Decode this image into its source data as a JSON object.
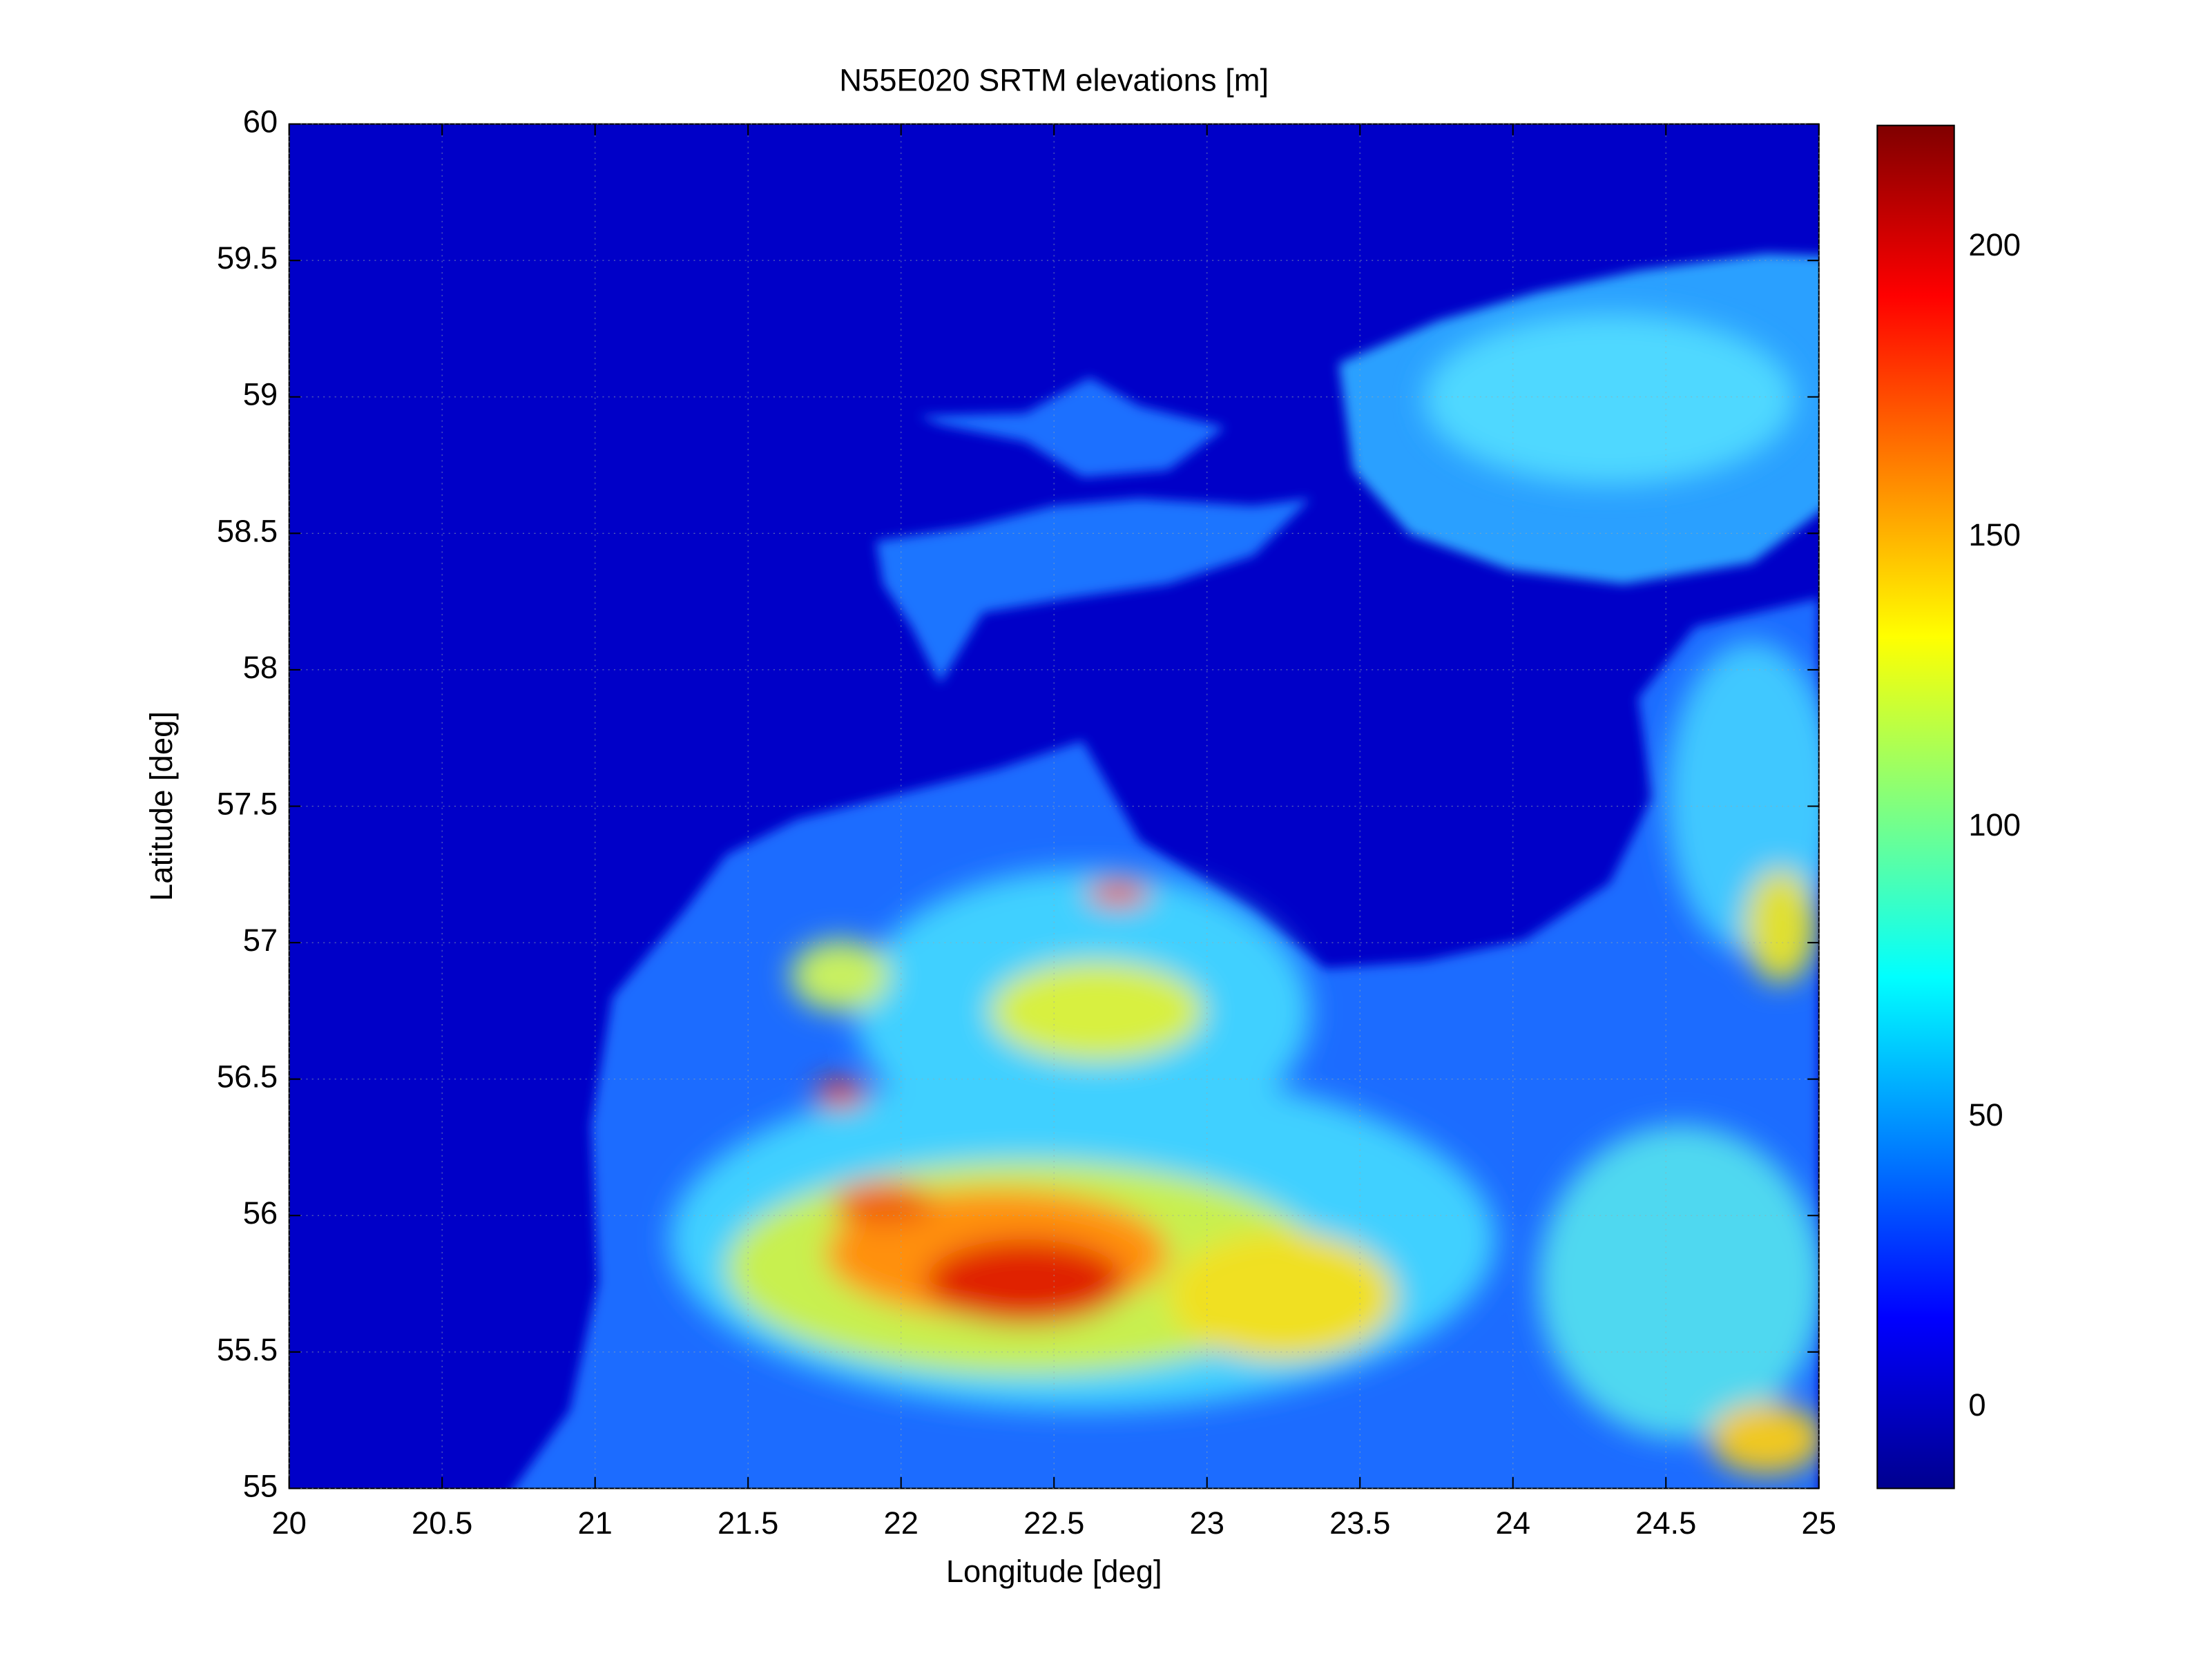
{
  "chart_data": {
    "type": "heatmap",
    "title": "N55E020 SRTM elevations [m]",
    "x_label": "Longitude [deg]",
    "y_label": "Latitude [deg]",
    "xlim": [
      20,
      25
    ],
    "ylim": [
      55,
      60
    ],
    "xticks": [
      20,
      20.5,
      21,
      21.5,
      22,
      22.5,
      23,
      23.5,
      24,
      24.5,
      25
    ],
    "yticks": [
      55,
      55.5,
      56,
      56.5,
      57,
      57.5,
      58,
      58.5,
      59,
      59.5,
      60
    ],
    "grid": true,
    "colormap": "jet",
    "colorbar": {
      "clim": [
        -14,
        221
      ],
      "ticks": [
        0,
        50,
        100,
        150,
        200
      ]
    }
  }
}
